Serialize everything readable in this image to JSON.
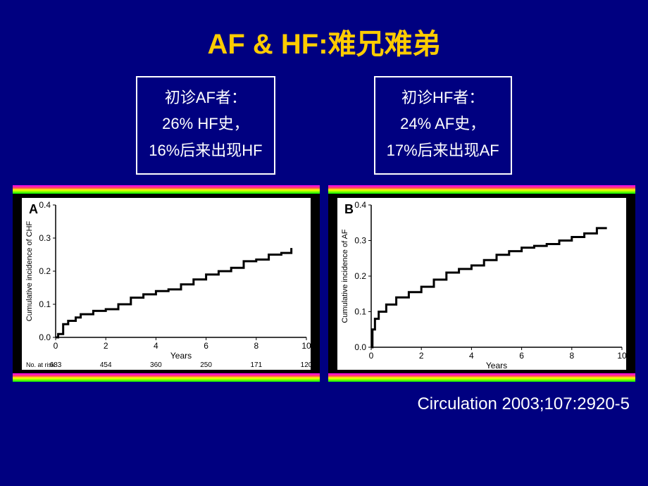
{
  "title": "AF & HF:难兄难弟",
  "left_box": {
    "l1": "初诊AF者：",
    "l2": "26% HF史，",
    "l3": "16%后来出现HF"
  },
  "right_box": {
    "l1": "初诊HF者：",
    "l2": "24% AF史，",
    "l3": "17%后来出现AF"
  },
  "chart_a": {
    "label": "A",
    "type": "step-line",
    "xlabel": "Years",
    "ylabel": "Cumulative incidence of CHF",
    "xlim": [
      0,
      10
    ],
    "ylim": [
      0,
      0.4
    ],
    "xtick_step": 2,
    "ytick_step": 0.1,
    "bg": "#ffffff",
    "line_color": "#000000",
    "line_width": 3,
    "values": [
      [
        0,
        0
      ],
      [
        0.1,
        0.01
      ],
      [
        0.3,
        0.04
      ],
      [
        0.5,
        0.05
      ],
      [
        0.8,
        0.06
      ],
      [
        1,
        0.07
      ],
      [
        1.5,
        0.08
      ],
      [
        2,
        0.085
      ],
      [
        2.5,
        0.1
      ],
      [
        3,
        0.12
      ],
      [
        3.5,
        0.13
      ],
      [
        4,
        0.14
      ],
      [
        4.5,
        0.145
      ],
      [
        5,
        0.16
      ],
      [
        5.5,
        0.175
      ],
      [
        6,
        0.19
      ],
      [
        6.5,
        0.2
      ],
      [
        7,
        0.21
      ],
      [
        7.5,
        0.23
      ],
      [
        8,
        0.235
      ],
      [
        8.5,
        0.25
      ],
      [
        9,
        0.255
      ],
      [
        9.4,
        0.27
      ]
    ],
    "risk_label": "No. at risk",
    "risk": [
      683,
      454,
      360,
      250,
      171,
      120
    ]
  },
  "chart_b": {
    "label": "B",
    "type": "step-line",
    "xlabel": "Years",
    "ylabel": "Cumulative incidence of AF",
    "xlim": [
      0,
      10
    ],
    "ylim": [
      0,
      0.4
    ],
    "xtick_step": 2,
    "ytick_step": 0.1,
    "bg": "#ffffff",
    "line_color": "#000000",
    "line_width": 3,
    "values": [
      [
        0,
        0
      ],
      [
        0.05,
        0.05
      ],
      [
        0.15,
        0.08
      ],
      [
        0.3,
        0.1
      ],
      [
        0.6,
        0.12
      ],
      [
        1,
        0.14
      ],
      [
        1.5,
        0.155
      ],
      [
        2,
        0.17
      ],
      [
        2.5,
        0.19
      ],
      [
        3,
        0.21
      ],
      [
        3.5,
        0.22
      ],
      [
        4,
        0.23
      ],
      [
        4.5,
        0.245
      ],
      [
        5,
        0.26
      ],
      [
        5.5,
        0.27
      ],
      [
        6,
        0.28
      ],
      [
        6.5,
        0.285
      ],
      [
        7,
        0.29
      ],
      [
        7.5,
        0.3
      ],
      [
        8,
        0.31
      ],
      [
        8.5,
        0.32
      ],
      [
        9,
        0.335
      ],
      [
        9.4,
        0.335
      ]
    ]
  },
  "citation": "Circulation 2003;107:2920-5",
  "colors": {
    "bg": "#000080",
    "title": "#ffcc00",
    "text": "#ffffff"
  }
}
